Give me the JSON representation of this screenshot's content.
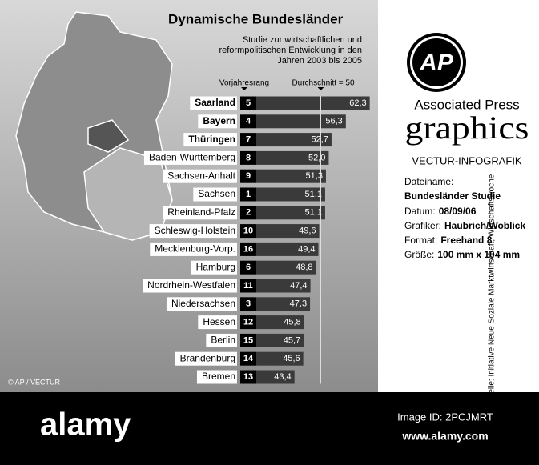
{
  "chart_data": {
    "type": "bar",
    "title": "Dynamische Bundesländer",
    "subtitle": [
      "Studie zur wirtschaftlichen und",
      "reformpolitischen Entwicklung in den",
      "Jahren 2003 bis 2005"
    ],
    "categories": [
      "Saarland",
      "Bayern",
      "Thüringen",
      "Baden-Württemberg",
      "Sachsen-Anhalt",
      "Sachsen",
      "Rheinland-Pfalz",
      "Schleswig-Holstein",
      "Mecklenburg-Vorp.",
      "Hamburg",
      "Nordrhein-Westfalen",
      "Niedersachsen",
      "Hessen",
      "Berlin",
      "Brandenburg",
      "Bremen"
    ],
    "values": [
      62.3,
      56.3,
      52.7,
      52.0,
      51.3,
      51.1,
      51.1,
      49.6,
      49.4,
      48.8,
      47.4,
      47.3,
      45.8,
      45.7,
      45.6,
      43.4
    ],
    "value_labels": [
      "62,3",
      "56,3",
      "52,7",
      "52,0",
      "51,3",
      "51,1",
      "51,1",
      "49,6",
      "49,4",
      "48,8",
      "47,4",
      "47,3",
      "45,8",
      "45,7",
      "45,6",
      "43,4"
    ],
    "previous_rank_label": "Vorjahresrang",
    "previous_rank": [
      5,
      4,
      7,
      8,
      9,
      1,
      2,
      10,
      16,
      6,
      11,
      3,
      12,
      15,
      14,
      13
    ],
    "reference": {
      "label": "Durchschnitt = 50",
      "value": 50
    },
    "color": "#3a3a3a",
    "source": "Quelle: Initiative Neue Soziale Marktwirtschaft, Wirtschaftswoche",
    "copyright": "© AP / VECTUR"
  },
  "panel": {
    "logo": "AP",
    "brand": "Associated Press",
    "product": "graphics",
    "agency": "VECTUR-INFOGRAFIK",
    "file_key": "Dateiname:",
    "file_value": "Bundesländer Studie",
    "details": [
      {
        "key": "Datum:",
        "value": "08/09/06"
      },
      {
        "key": "Grafiker:",
        "value": "Haubrich/Woblick"
      },
      {
        "key": "Format:",
        "value": "Freehand 8"
      },
      {
        "key": "Größe:",
        "value": "100 mm x 104 mm"
      }
    ]
  },
  "watermark": {
    "brand": "alamy",
    "image_id": "Image ID: 2PCJMRT",
    "url": "www.alamy.com"
  }
}
